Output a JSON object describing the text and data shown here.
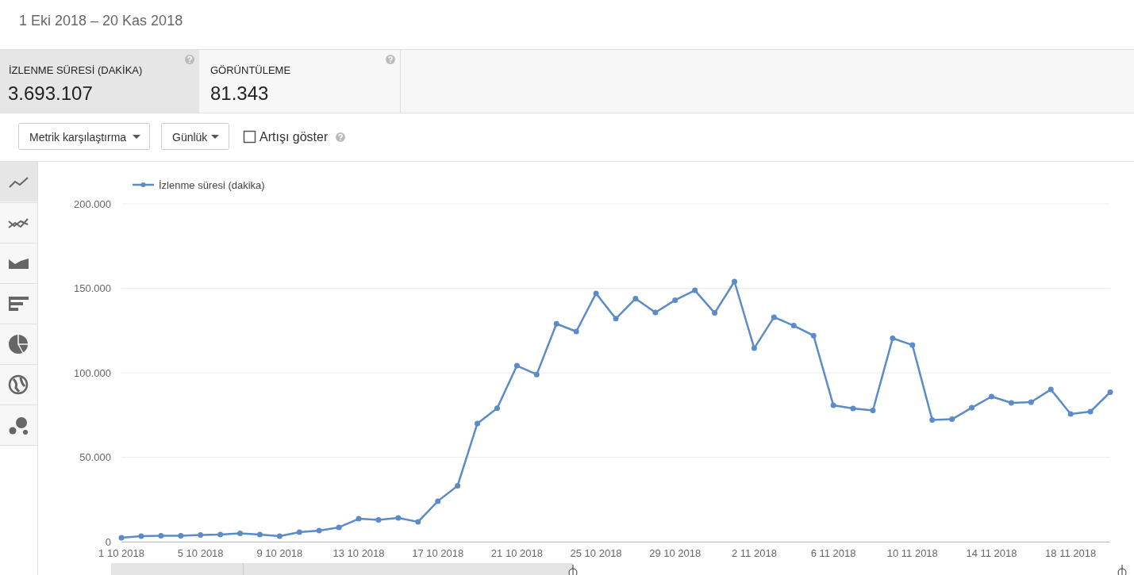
{
  "chart_data": {
    "type": "line",
    "title": "1 Eki 2018 – 20 Kas 2018",
    "annotations": [
      "İZLENME SÜRESİ (DAKİKA)",
      "3.693.107",
      "GÖRÜNTÜLEME",
      "81.343",
      "Metrik karşılaştırma",
      "Günlük",
      "Artışı göster"
    ],
    "x": [
      "2018-10-01",
      "2018-10-02",
      "2018-10-03",
      "2018-10-04",
      "2018-10-05",
      "2018-10-06",
      "2018-10-07",
      "2018-10-08",
      "2018-10-09",
      "2018-10-10",
      "2018-10-11",
      "2018-10-12",
      "2018-10-13",
      "2018-10-14",
      "2018-10-15",
      "2018-10-16",
      "2018-10-17",
      "2018-10-18",
      "2018-10-19",
      "2018-10-20",
      "2018-10-21",
      "2018-10-22",
      "2018-10-23",
      "2018-10-24",
      "2018-10-25",
      "2018-10-26",
      "2018-10-27",
      "2018-10-28",
      "2018-10-29",
      "2018-10-30",
      "2018-10-31",
      "2018-11-01",
      "2018-11-02",
      "2018-11-03",
      "2018-11-04",
      "2018-11-05",
      "2018-11-06",
      "2018-11-07",
      "2018-11-08",
      "2018-11-09",
      "2018-11-10",
      "2018-11-11",
      "2018-11-12",
      "2018-11-13",
      "2018-11-14",
      "2018-11-15",
      "2018-11-16",
      "2018-11-17",
      "2018-11-18",
      "2018-11-19",
      "2018-11-20"
    ],
    "series": [
      {
        "name": "İzlenme süresi (dakika)",
        "color": "#5b8cc8",
        "values": [
          2300,
          3300,
          3500,
          3500,
          4000,
          4200,
          4900,
          4200,
          3300,
          5600,
          6600,
          8500,
          13600,
          12900,
          14100,
          11700,
          24000,
          33100,
          70000,
          79000,
          104200,
          99000,
          129000,
          124400,
          147000,
          132000,
          143900,
          135700,
          143000,
          148800,
          135400,
          154000,
          114500,
          132900,
          127900,
          122000,
          80800,
          78900,
          77700,
          120400,
          116400,
          72100,
          72500,
          79300,
          85900,
          82200,
          82600,
          90100,
          75600,
          77000,
          88500
        ]
      }
    ],
    "xlim": [
      "2018-10-01",
      "2018-11-20"
    ],
    "xticks": [
      {
        "value": "2018-10-01",
        "label": "1 10 2018"
      },
      {
        "value": "2018-10-05",
        "label": "5 10 2018"
      },
      {
        "value": "2018-10-09",
        "label": "9 10 2018"
      },
      {
        "value": "2018-10-13",
        "label": "13 10 2018"
      },
      {
        "value": "2018-10-17",
        "label": "17 10 2018"
      },
      {
        "value": "2018-10-21",
        "label": "21 10 2018"
      },
      {
        "value": "2018-10-25",
        "label": "25 10 2018"
      },
      {
        "value": "2018-10-29",
        "label": "29 10 2018"
      },
      {
        "value": "2018-11-02",
        "label": "2 11 2018"
      },
      {
        "value": "2018-11-06",
        "label": "6 11 2018"
      },
      {
        "value": "2018-11-10",
        "label": "10 11 2018"
      },
      {
        "value": "2018-11-14",
        "label": "14 11 2018"
      },
      {
        "value": "2018-11-18",
        "label": "18 11 2018"
      }
    ],
    "ylim": [
      0,
      200000
    ],
    "yticks": [
      0,
      {
        "value": 50000,
        "label": "50.000"
      },
      {
        "value": 100000,
        "label": "100.000"
      },
      {
        "value": 150000,
        "label": "150.000"
      },
      {
        "value": 200000,
        "label": "200.000"
      }
    ],
    "grid": "y",
    "legend": "top left",
    "marker": "circle",
    "line_style": "solid"
  }
}
